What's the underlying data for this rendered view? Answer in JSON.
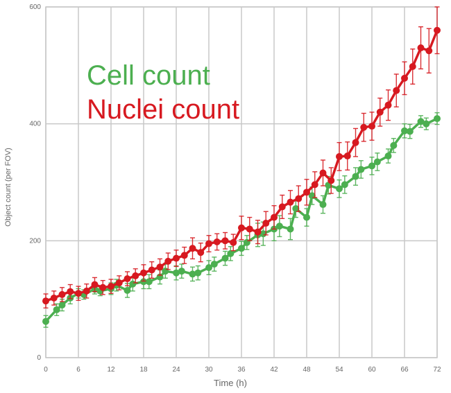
{
  "colors": {
    "cell": "#4caf50",
    "nuclei": "#d71920",
    "grid": "#c8c8c8",
    "axis_text": "#666666"
  },
  "chart_data": {
    "type": "line",
    "title": "",
    "xlabel": "Time (h)",
    "ylabel": "Object count (per FOV)",
    "xlim": [
      0,
      72
    ],
    "ylim": [
      0,
      600
    ],
    "xticks": [
      0,
      6,
      12,
      18,
      24,
      30,
      36,
      42,
      48,
      54,
      60,
      66,
      72
    ],
    "yticks": [
      0,
      200,
      400,
      600
    ],
    "grid": true,
    "legend_position": "top-left",
    "series": [
      {
        "name": "Cell count",
        "color": "#4caf50",
        "x": [
          0,
          2,
          3,
          4.5,
          6,
          7,
          9,
          10,
          12,
          13,
          15,
          16,
          18,
          19,
          21,
          22,
          24,
          25,
          27,
          28,
          30,
          31,
          33,
          34,
          36,
          37,
          39,
          40,
          42,
          43,
          45,
          46,
          48,
          49,
          51,
          52,
          54,
          55,
          57,
          58,
          60,
          61,
          63,
          64,
          66,
          67,
          69,
          70,
          72
        ],
        "values": [
          62,
          82,
          90,
          102,
          110,
          108,
          117,
          114,
          118,
          124,
          115,
          126,
          130,
          130,
          138,
          148,
          145,
          148,
          143,
          145,
          154,
          160,
          170,
          178,
          187,
          197,
          210,
          212,
          220,
          225,
          220,
          255,
          240,
          277,
          262,
          295,
          289,
          296,
          310,
          322,
          328,
          335,
          345,
          363,
          388,
          387,
          404,
          400,
          409
        ],
        "error": [
          10,
          10,
          10,
          10,
          8,
          8,
          8,
          8,
          10,
          10,
          12,
          12,
          12,
          12,
          12,
          12,
          12,
          12,
          12,
          12,
          12,
          12,
          12,
          12,
          12,
          12,
          20,
          20,
          20,
          18,
          18,
          15,
          15,
          15,
          15,
          15,
          15,
          15,
          15,
          15,
          15,
          15,
          12,
          12,
          12,
          12,
          10,
          10,
          10
        ]
      },
      {
        "name": "Nuclei count",
        "color": "#d71920",
        "x": [
          0,
          1.5,
          3,
          4.5,
          6,
          7.5,
          9,
          10.5,
          12,
          13.5,
          15,
          16.5,
          18,
          19.5,
          21,
          22.5,
          24,
          25.5,
          27,
          28.5,
          30,
          31.5,
          33,
          34.5,
          36,
          37.5,
          39,
          40.5,
          42,
          43.5,
          45,
          46.5,
          48,
          49.5,
          51,
          52.5,
          54,
          55.5,
          57,
          58.5,
          60,
          61.5,
          63,
          64.5,
          66,
          67.5,
          69,
          70.5,
          72
        ],
        "values": [
          97,
          102,
          108,
          113,
          110,
          114,
          125,
          120,
          122,
          128,
          135,
          140,
          145,
          150,
          155,
          165,
          170,
          175,
          187,
          180,
          195,
          198,
          200,
          197,
          222,
          220,
          215,
          230,
          240,
          258,
          266,
          272,
          283,
          296,
          316,
          303,
          344,
          345,
          368,
          394,
          396,
          420,
          432,
          457,
          478,
          498,
          530,
          525,
          560
        ],
        "error": [
          12,
          12,
          12,
          12,
          12,
          12,
          12,
          12,
          12,
          12,
          12,
          12,
          14,
          14,
          14,
          14,
          14,
          14,
          18,
          16,
          14,
          14,
          14,
          14,
          20,
          20,
          20,
          20,
          20,
          20,
          20,
          22,
          22,
          22,
          22,
          22,
          24,
          24,
          24,
          24,
          24,
          24,
          26,
          28,
          28,
          30,
          36,
          38,
          40
        ]
      }
    ]
  },
  "legend": {
    "cell_label": "Cell count",
    "nuclei_label": "Nuclei count"
  }
}
